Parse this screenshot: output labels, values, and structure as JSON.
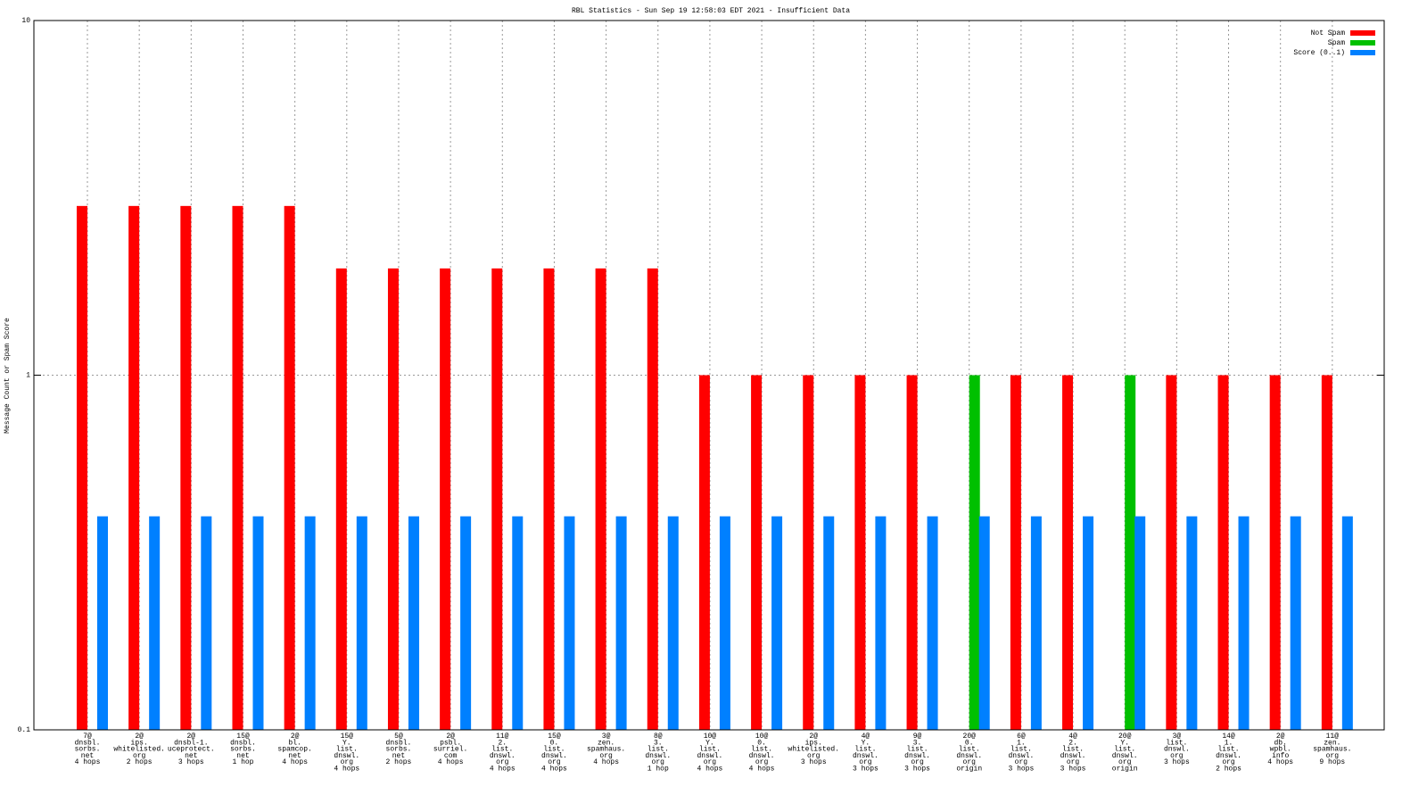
{
  "chart_data": {
    "type": "bar",
    "title": "RBL Statistics - Sun Sep 19 12:58:03 EDT 2021 - Insufficient Data",
    "ylabel": "Message Count or Spam Score",
    "log_scale": true,
    "grid": true,
    "legend": "top right",
    "ylim": [
      0.1,
      10
    ],
    "yticks": [
      0.1,
      1,
      10
    ],
    "categories": [
      [
        "7@",
        "dnsbl.",
        "sorbs.",
        "net",
        "4 hops"
      ],
      [
        "2@",
        "ips.",
        "whitelisted.",
        "org",
        "2 hops"
      ],
      [
        "2@",
        "dnsbl-1.",
        "uceprotect.",
        "net",
        "3 hops"
      ],
      [
        "15@",
        "dnsbl.",
        "sorbs.",
        "net",
        "1 hop"
      ],
      [
        "2@",
        "bl.",
        "spamcop.",
        "net",
        "4 hops"
      ],
      [
        "15@",
        "Y.",
        "list.",
        "dnswl.",
        "org",
        "4 hops"
      ],
      [
        "5@",
        "dnsbl.",
        "sorbs.",
        "net",
        "2 hops"
      ],
      [
        "2@",
        "psbl.",
        "surriel.",
        "com",
        "4 hops"
      ],
      [
        "11@",
        "2.",
        "list.",
        "dnswl.",
        "org",
        "4 hops"
      ],
      [
        "15@",
        "0.",
        "list.",
        "dnswl.",
        "org",
        "4 hops"
      ],
      [
        "3@",
        "zen.",
        "spamhaus.",
        "org",
        "4 hops"
      ],
      [
        "8@",
        "3.",
        "list.",
        "dnswl.",
        "org",
        "1 hop"
      ],
      [
        "10@",
        "Y.",
        "list.",
        "dnswl.",
        "org",
        "4 hops"
      ],
      [
        "10@",
        "0.",
        "list.",
        "dnswl.",
        "org",
        "4 hops"
      ],
      [
        "2@",
        "ips.",
        "whitelisted.",
        "org",
        "3 hops"
      ],
      [
        "4@",
        "Y.",
        "list.",
        "dnswl.",
        "org",
        "3 hops"
      ],
      [
        "9@",
        "3.",
        "list.",
        "dnswl.",
        "org",
        "3 hops"
      ],
      [
        "20@",
        "0.",
        "list.",
        "dnswl.",
        "org",
        "origin"
      ],
      [
        "6@",
        "1.",
        "list.",
        "dnswl.",
        "org",
        "3 hops"
      ],
      [
        "4@",
        "2.",
        "list.",
        "dnswl.",
        "org",
        "3 hops"
      ],
      [
        "20@",
        "Y.",
        "list.",
        "dnswl.",
        "org",
        "origin"
      ],
      [
        "3@",
        "list.",
        "dnswl.",
        "org",
        "3 hops"
      ],
      [
        "14@",
        "1.",
        "list.",
        "dnswl.",
        "org",
        "2 hops"
      ],
      [
        "2@",
        "db.",
        "wpbl.",
        "info",
        "4 hops"
      ],
      [
        "11@",
        "zen.",
        "spamhaus.",
        "org",
        "9 hops"
      ]
    ],
    "series": [
      {
        "name": "Not Spam",
        "color": "#ff0000",
        "values": [
          3,
          3,
          3,
          3,
          3,
          2,
          2,
          2,
          2,
          2,
          2,
          2,
          1,
          1,
          1,
          1,
          1,
          null,
          1,
          1,
          null,
          1,
          1,
          1,
          1
        ]
      },
      {
        "name": "Spam",
        "color": "#00c000",
        "values": [
          null,
          null,
          null,
          null,
          null,
          null,
          null,
          null,
          null,
          null,
          null,
          null,
          null,
          null,
          null,
          null,
          null,
          1,
          null,
          null,
          1,
          null,
          null,
          null,
          null
        ]
      },
      {
        "name": "Score (0..1)",
        "color": "#0080ff",
        "values": [
          0.4,
          0.4,
          0.4,
          0.4,
          0.4,
          0.4,
          0.4,
          0.4,
          0.4,
          0.4,
          0.4,
          0.4,
          0.4,
          0.4,
          0.4,
          0.4,
          0.4,
          0.4,
          0.4,
          0.4,
          0.4,
          0.4,
          0.4,
          0.4,
          0.4
        ]
      }
    ]
  }
}
